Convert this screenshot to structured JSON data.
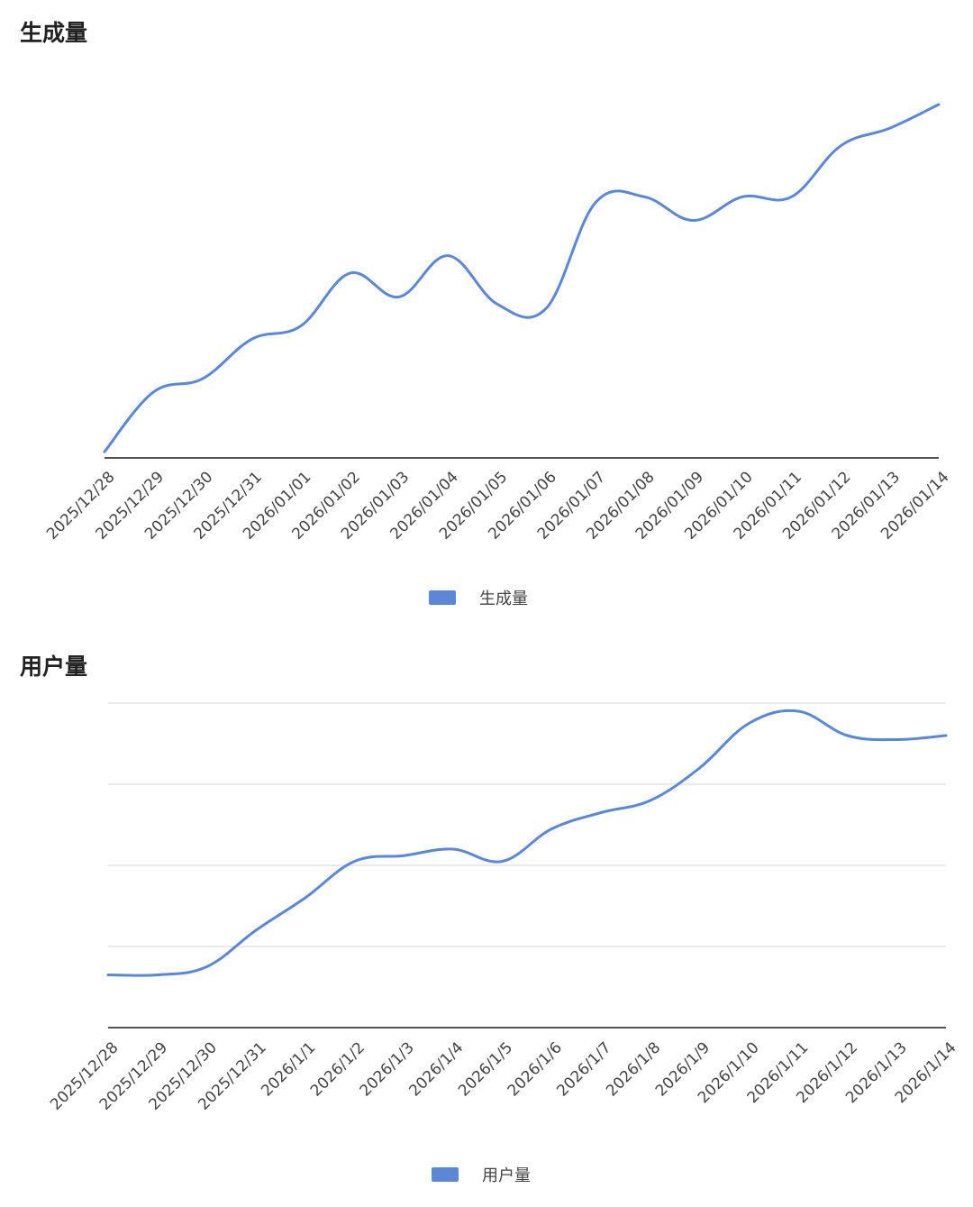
{
  "chart_data": [
    {
      "type": "line",
      "title": "生成量",
      "x": [
        "2025/12/28",
        "2025/12/29",
        "2025/12/30",
        "2025/12/31",
        "2026/01/01",
        "2026/01/02",
        "2026/01/03",
        "2026/01/04",
        "2026/01/05",
        "2026/01/06",
        "2026/01/07",
        "2026/01/08",
        "2026/01/09",
        "2026/01/10",
        "2026/01/11",
        "2026/01/12",
        "2026/01/13",
        "2026/01/14"
      ],
      "series": [
        {
          "name": "生成量",
          "values": [
            2,
            70,
            85,
            130,
            145,
            205,
            178,
            225,
            170,
            165,
            285,
            292,
            265,
            292,
            292,
            350,
            370,
            397
          ]
        }
      ],
      "ylim": [
        0,
        400
      ],
      "grid": false,
      "y_ticks_visible": false,
      "legend_position": "bottom",
      "color": "#5b87d6"
    },
    {
      "type": "line",
      "title": "用户量",
      "x": [
        "2025/12/28",
        "2025/12/29",
        "2025/12/30",
        "2025/12/31",
        "2026/1/1",
        "2026/1/2",
        "2026/1/3",
        "2026/1/4",
        "2026/1/5",
        "2026/1/6",
        "2026/1/7",
        "2026/1/8",
        "2026/1/9",
        "2026/1/10",
        "2026/1/11",
        "2026/1/12",
        "2026/1/13",
        "2026/1/14"
      ],
      "series": [
        {
          "name": "用户量",
          "values": [
            65,
            65,
            75,
            120,
            160,
            205,
            212,
            220,
            205,
            245,
            265,
            280,
            320,
            375,
            390,
            360,
            355,
            360
          ]
        }
      ],
      "ylim": [
        0,
        400
      ],
      "grid": true,
      "y_ticks_visible": false,
      "legend_position": "bottom",
      "color": "#5b87d6"
    }
  ]
}
